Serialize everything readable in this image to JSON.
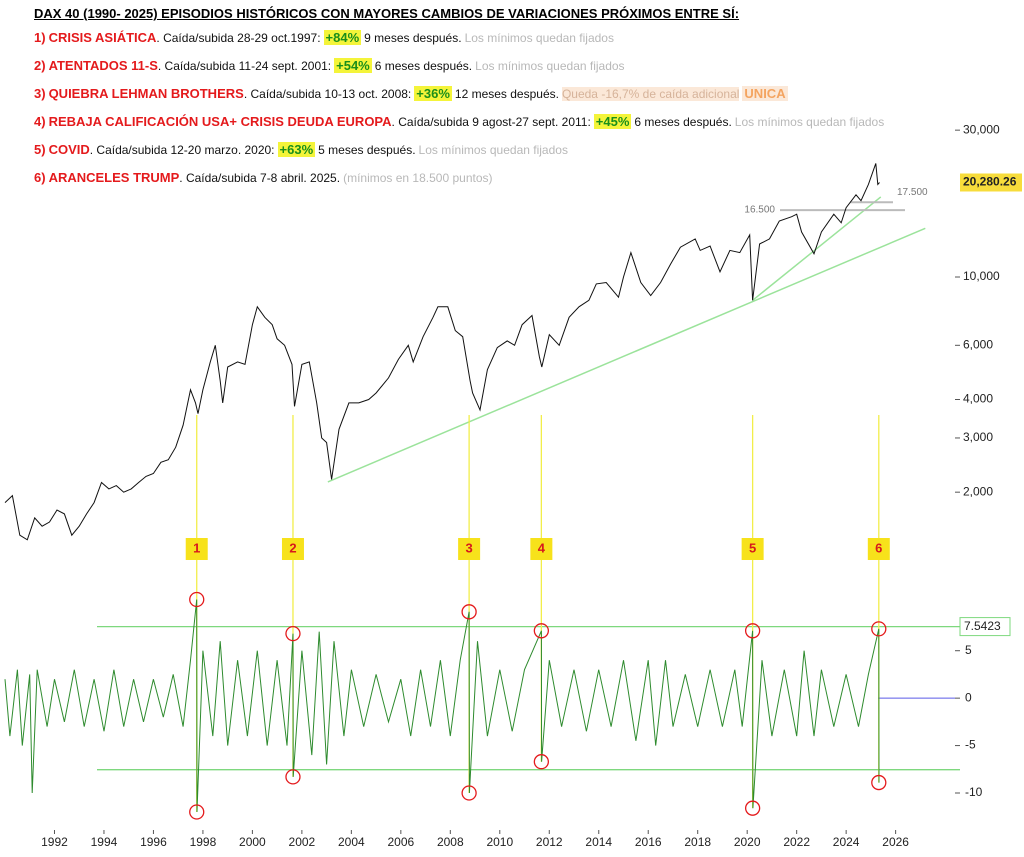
{
  "header": {
    "title": "DAX 40 (1990- 2025) EPISODIOS HISTÓRICOS CON MAYORES CAMBIOS DE VARIACIONES PRÓXIMOS ENTRE SÍ:",
    "items": [
      {
        "num": "1)",
        "name": "CRISIS ASIÁTICA",
        "detail": ". Caída/subida 28-29 oct.1997:",
        "change": "+84%",
        "after": "9 meses después.",
        "note": "Los mínimos quedan fijados"
      },
      {
        "num": "2)",
        "name": "ATENTADOS 11-S",
        "detail": ". Caída/subida 11-24 sept. 2001:",
        "change": "+54%",
        "after": "6 meses después.",
        "note": "Los mínimos quedan fijados"
      },
      {
        "num": "3)",
        "name": "QUIEBRA LEHMAN BROTHERS",
        "detail": ". Caída/subida 10-13 oct. 2008:",
        "change": "+36%",
        "after": "12 meses después.",
        "note": "Queda -16,7% de caída adicional",
        "extra": "UNICA"
      },
      {
        "num": "4)",
        "name": "REBAJA CALIFICACIÓN USA+ CRISIS DEUDA EUROPA",
        "detail": ". Caída/subida 9 agost-27 sept. 2011:",
        "change": "+45%",
        "after": "6 meses después.",
        "note": "Los mínimos quedan fijados"
      },
      {
        "num": "5)",
        "name": "COVID",
        "detail": ". Caída/subida 12-20 marzo. 2020:",
        "change": "+63%",
        "after": "5 meses después.",
        "note": "Los mínimos quedan fijados"
      },
      {
        "num": "6)",
        "name": "ARANCELES TRUMP",
        "detail": ". Caída/subida 7-8 abril. 2025.",
        "note": "(mínimos en 18.500 puntos)"
      }
    ]
  },
  "chart_data": [
    {
      "type": "line",
      "log_scale": true,
      "color": "#111111",
      "xlim": [
        1990,
        2028.4
      ],
      "ylim": [
        1250,
        33600
      ],
      "yticks": [
        {
          "value": 2000,
          "label": "2,000"
        },
        {
          "value": 3000,
          "label": "3,000"
        },
        {
          "value": 4000,
          "label": "4,000"
        },
        {
          "value": 6000,
          "label": "6,000"
        },
        {
          "value": 10000,
          "label": "10,000"
        },
        {
          "value": 30000,
          "label": "30,000"
        }
      ],
      "x": [
        1990.0,
        1990.3,
        1990.6,
        1990.9,
        1991.2,
        1991.5,
        1991.8,
        1992.1,
        1992.4,
        1992.7,
        1993.0,
        1993.3,
        1993.6,
        1993.9,
        1994.2,
        1994.5,
        1994.8,
        1995.1,
        1995.4,
        1995.7,
        1996.0,
        1996.3,
        1996.6,
        1996.9,
        1997.2,
        1997.5,
        1997.7,
        1997.8,
        1998.0,
        1998.3,
        1998.5,
        1998.7,
        1998.8,
        1999.0,
        1999.4,
        1999.7,
        2000.0,
        2000.2,
        2000.5,
        2000.8,
        2001.0,
        2001.3,
        2001.6,
        2001.7,
        2002.0,
        2002.3,
        2002.6,
        2002.8,
        2003.0,
        2003.2,
        2003.5,
        2003.9,
        2004.3,
        2004.7,
        2005.0,
        2005.5,
        2005.9,
        2006.3,
        2006.5,
        2006.9,
        2007.3,
        2007.5,
        2007.9,
        2008.2,
        2008.5,
        2008.8,
        2008.9,
        2009.2,
        2009.5,
        2009.9,
        2010.3,
        2010.6,
        2010.9,
        2011.3,
        2011.6,
        2011.7,
        2012.0,
        2012.4,
        2012.8,
        2013.2,
        2013.6,
        2013.9,
        2014.3,
        2014.8,
        2015.0,
        2015.3,
        2015.7,
        2016.1,
        2016.5,
        2016.9,
        2017.3,
        2017.9,
        2018.1,
        2018.5,
        2018.9,
        2019.3,
        2019.7,
        2020.1,
        2020.22,
        2020.5,
        2020.9,
        2021.3,
        2021.8,
        2022.0,
        2022.2,
        2022.7,
        2023.0,
        2023.5,
        2023.8,
        2024.0,
        2024.4,
        2024.6,
        2024.9,
        2025.2,
        2025.28,
        2025.35
      ],
      "values": [
        1850,
        1950,
        1450,
        1400,
        1650,
        1550,
        1600,
        1750,
        1700,
        1450,
        1550,
        1700,
        1850,
        2150,
        2050,
        2100,
        2000,
        2050,
        2150,
        2250,
        2300,
        2500,
        2550,
        2800,
        3300,
        4300,
        3900,
        3600,
        4300,
        5300,
        6000,
        4600,
        3900,
        5100,
        5300,
        5200,
        7000,
        8000,
        7400,
        7000,
        6300,
        6000,
        5200,
        3800,
        5200,
        5300,
        3900,
        3000,
        2900,
        2200,
        3200,
        3900,
        3900,
        4000,
        4200,
        4700,
        5400,
        6000,
        5300,
        6400,
        7400,
        8000,
        8000,
        6700,
        6400,
        4600,
        4200,
        3700,
        5000,
        5900,
        6200,
        6000,
        7000,
        7500,
        5500,
        5100,
        6500,
        6000,
        7400,
        8000,
        8400,
        9500,
        9600,
        8600,
        10000,
        12000,
        9600,
        8700,
        9600,
        11000,
        12500,
        13300,
        12200,
        12600,
        10400,
        12200,
        12000,
        13700,
        8400,
        12800,
        13300,
        15200,
        15700,
        16000,
        14000,
        11900,
        14000,
        16000,
        15000,
        16800,
        18500,
        17700,
        20000,
        23400,
        20000,
        20280.26
      ],
      "last": {
        "value": 20280.26,
        "label": "20,280.26"
      },
      "trendlines": [
        {
          "x": [
            2003.05,
            2027.2
          ],
          "values": [
            2160,
            14400
          ]
        },
        {
          "x": [
            2020.22,
            2025.4
          ],
          "values": [
            8400,
            18200
          ]
        }
      ],
      "trend_color": "#9be39b",
      "levels": [
        {
          "value": 16500,
          "label": "16.500"
        },
        {
          "value": 17500,
          "label": "17.500"
        }
      ]
    },
    {
      "type": "line",
      "color": "#2e8b2e",
      "xlim": [
        1990,
        2028.4
      ],
      "ylim": [
        -13.9,
        11.4
      ],
      "xticks": [
        1992,
        1994,
        1996,
        1998,
        2000,
        2002,
        2004,
        2006,
        2008,
        2010,
        2012,
        2014,
        2016,
        2018,
        2020,
        2022,
        2024,
        2026
      ],
      "yticks": [
        -10,
        -5,
        0,
        5
      ],
      "level": 7.5423,
      "x": [
        1990.0,
        1990.2,
        1990.5,
        1990.7,
        1991.0,
        1991.1,
        1991.3,
        1991.7,
        1992.0,
        1992.4,
        1992.8,
        1993.2,
        1993.6,
        1994.0,
        1994.4,
        1994.8,
        1995.2,
        1995.6,
        1996.0,
        1996.4,
        1996.8,
        1997.2,
        1997.5,
        1997.75,
        1997.76,
        1998.0,
        1998.4,
        1998.7,
        1999.0,
        1999.4,
        1999.8,
        2000.2,
        2000.6,
        2001.0,
        2001.4,
        2001.64,
        2001.65,
        2002.0,
        2002.4,
        2002.7,
        2003.0,
        2003.3,
        2003.7,
        2004.0,
        2004.5,
        2005.0,
        2005.5,
        2006.0,
        2006.4,
        2006.8,
        2007.2,
        2007.6,
        2008.0,
        2008.4,
        2008.76,
        2008.77,
        2009.1,
        2009.5,
        2010.0,
        2010.5,
        2011.0,
        2011.68,
        2011.69,
        2012.0,
        2012.5,
        2013.0,
        2013.5,
        2014.0,
        2014.5,
        2015.0,
        2015.5,
        2016.0,
        2016.3,
        2016.7,
        2017.0,
        2017.5,
        2018.0,
        2018.5,
        2019.0,
        2019.5,
        2019.8,
        2020.22,
        2020.23,
        2020.6,
        2021.0,
        2021.5,
        2022.0,
        2022.3,
        2022.7,
        2023.0,
        2023.5,
        2024.0,
        2024.5,
        2024.9,
        2025.32,
        2025.33
      ],
      "values": [
        2,
        -4,
        3,
        -5,
        2.5,
        -10,
        3,
        -3,
        2,
        -2.5,
        3,
        -3,
        2,
        -3.5,
        3,
        -3,
        2,
        -2.5,
        2,
        -2,
        2.5,
        -3,
        4,
        10.4,
        -12,
        5,
        -4,
        6,
        -5,
        4,
        -4,
        5,
        -5,
        4,
        -5,
        6.8,
        -8.3,
        5,
        -6,
        7,
        -7,
        6,
        -4,
        3,
        -3,
        2.5,
        -2.5,
        2,
        -4,
        3,
        -3,
        4,
        -4,
        4,
        9.1,
        -10,
        6,
        -4,
        3,
        -3.5,
        3,
        7.1,
        -6.7,
        4,
        -3,
        3,
        -3.5,
        3,
        -3,
        4,
        -4.5,
        4,
        -5,
        4,
        -3,
        2.5,
        -3,
        3,
        -3,
        3,
        -3,
        7.1,
        -11.6,
        4,
        -4,
        3,
        -4,
        5,
        -4,
        3,
        -3,
        2.5,
        -3,
        2.5,
        7.3,
        -8.9
      ],
      "events": [
        {
          "label": "1",
          "x": 1997.75,
          "high": 10.4,
          "low": -12
        },
        {
          "label": "2",
          "x": 2001.64,
          "high": 6.8,
          "low": -8.3
        },
        {
          "label": "3",
          "x": 2008.76,
          "high": 9.1,
          "low": -10
        },
        {
          "label": "4",
          "x": 2011.68,
          "high": 7.1,
          "low": -6.7
        },
        {
          "label": "5",
          "x": 2020.22,
          "high": 7.1,
          "low": -11.6
        },
        {
          "label": "6",
          "x": 2025.32,
          "high": 7.3,
          "low": -8.9
        }
      ]
    }
  ]
}
